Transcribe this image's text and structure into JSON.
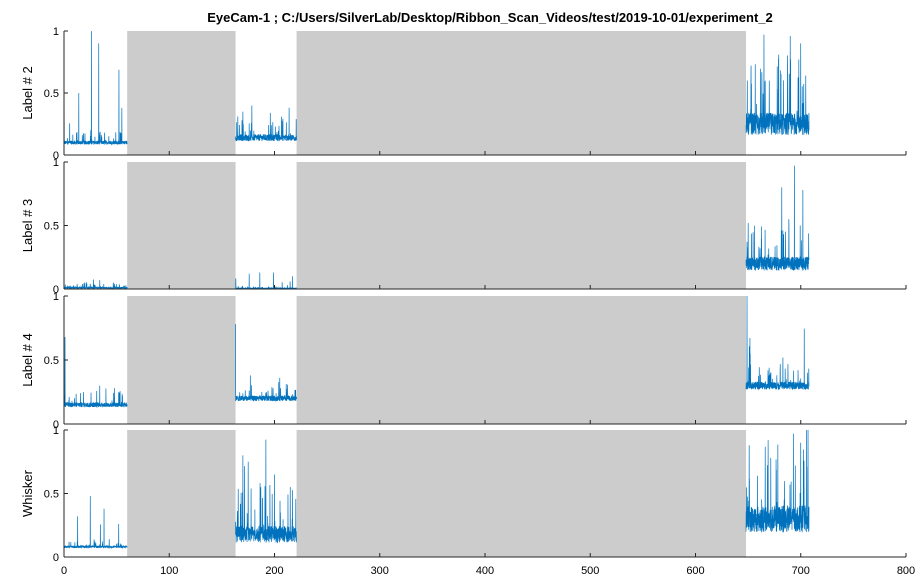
{
  "figure": {
    "title": "EyeCam-1 ; C:/Users/SilverLab/Desktop/Ribbon_Scan_Videos/test/2019-10-01/experiment_2"
  },
  "chart_data": {
    "type": "line",
    "title": "EyeCam-1 ; C:/Users/SilverLab/Desktop/Ribbon_Scan_Videos/test/2019-10-01/experiment_2",
    "xlim": [
      0,
      800
    ],
    "x_ticks": [
      "0",
      "100",
      "200",
      "300",
      "400",
      "500",
      "600",
      "700",
      "800"
    ],
    "y_ticks": [
      "0",
      "0.5",
      "1"
    ],
    "ylim": [
      0,
      1
    ],
    "line_color": "#0072BD",
    "shade_color": "#CCCCCC",
    "shaded_intervals": [
      [
        60,
        163
      ],
      [
        221,
        648
      ]
    ],
    "data_segments": [
      [
        0,
        60
      ],
      [
        163,
        221
      ],
      [
        648,
        708
      ]
    ],
    "panels": [
      {
        "ylabel": "Label # 2",
        "segments": [
          {
            "x_range": [
              0,
              60
            ],
            "base": 0.1,
            "noise": 0.05,
            "spike_max": 1.0,
            "peaks": [
              [
                26,
                1.0
              ],
              [
                33,
                0.9
              ],
              [
                14,
                0.5
              ],
              [
                55,
                0.38
              ]
            ]
          },
          {
            "x_range": [
              163,
              221
            ],
            "base": 0.14,
            "noise": 0.09,
            "spike_max": 0.4,
            "peaks": [
              [
                170,
                0.35
              ],
              [
                196,
                0.34
              ]
            ]
          },
          {
            "x_range": [
              648,
              708
            ],
            "base": 0.25,
            "noise": 0.3,
            "spike_max": 0.97,
            "peaks": [
              [
                665,
                0.97
              ],
              [
                690,
                0.96
              ],
              [
                700,
                0.9
              ]
            ]
          }
        ]
      },
      {
        "ylabel": "Label # 3",
        "segments": [
          {
            "x_range": [
              0,
              60
            ],
            "base": 0.01,
            "noise": 0.02,
            "spike_max": 0.08,
            "peaks": [
              [
                34,
                0.07
              ]
            ]
          },
          {
            "x_range": [
              163,
              221
            ],
            "base": 0.005,
            "noise": 0.01,
            "spike_max": 0.13,
            "peaks": [
              [
                176,
                0.12
              ],
              [
                186,
                0.13
              ],
              [
                199,
                0.13
              ],
              [
                217,
                0.1
              ]
            ]
          },
          {
            "x_range": [
              648,
              708
            ],
            "base": 0.2,
            "noise": 0.18,
            "spike_max": 0.97,
            "peaks": [
              [
                650,
                0.52
              ],
              [
                682,
                0.8
              ],
              [
                694,
                0.97
              ],
              [
                702,
                0.78
              ]
            ]
          }
        ]
      },
      {
        "ylabel": "Label # 4",
        "segments": [
          {
            "x_range": [
              0,
              60
            ],
            "base": 0.15,
            "noise": 0.06,
            "spike_max": 0.68,
            "peaks": [
              [
                1,
                0.68
              ],
              [
                34,
                0.3
              ],
              [
                48,
                0.28
              ]
            ]
          },
          {
            "x_range": [
              163,
              221
            ],
            "base": 0.2,
            "noise": 0.07,
            "spike_max": 0.78,
            "peaks": [
              [
                163,
                0.78
              ],
              [
                177,
                0.38
              ],
              [
                205,
                0.36
              ]
            ]
          },
          {
            "x_range": [
              648,
              708
            ],
            "base": 0.3,
            "noise": 0.1,
            "spike_max": 1.0,
            "peaks": [
              [
                649,
                1.0
              ],
              [
                652,
                0.55
              ],
              [
                683,
                0.52
              ]
            ]
          }
        ]
      },
      {
        "ylabel": "Whisker",
        "segments": [
          {
            "x_range": [
              0,
              60
            ],
            "base": 0.08,
            "noise": 0.03,
            "spike_max": 0.48,
            "peaks": [
              [
                25,
                0.48
              ],
              [
                13,
                0.32
              ],
              [
                38,
                0.38
              ],
              [
                52,
                0.26
              ]
            ]
          },
          {
            "x_range": [
              163,
              221
            ],
            "base": 0.18,
            "noise": 0.22,
            "spike_max": 0.8,
            "peaks": [
              [
                170,
                0.8
              ],
              [
                175,
                0.75
              ],
              [
                187,
                0.55
              ],
              [
                200,
                0.65
              ],
              [
                215,
                0.55
              ]
            ]
          },
          {
            "x_range": [
              648,
              708
            ],
            "base": 0.3,
            "noise": 0.35,
            "spike_max": 0.97,
            "peaks": [
              [
                651,
                0.88
              ],
              [
                669,
                0.92
              ],
              [
                693,
                0.97
              ],
              [
                700,
                0.9
              ]
            ]
          }
        ]
      }
    ]
  }
}
